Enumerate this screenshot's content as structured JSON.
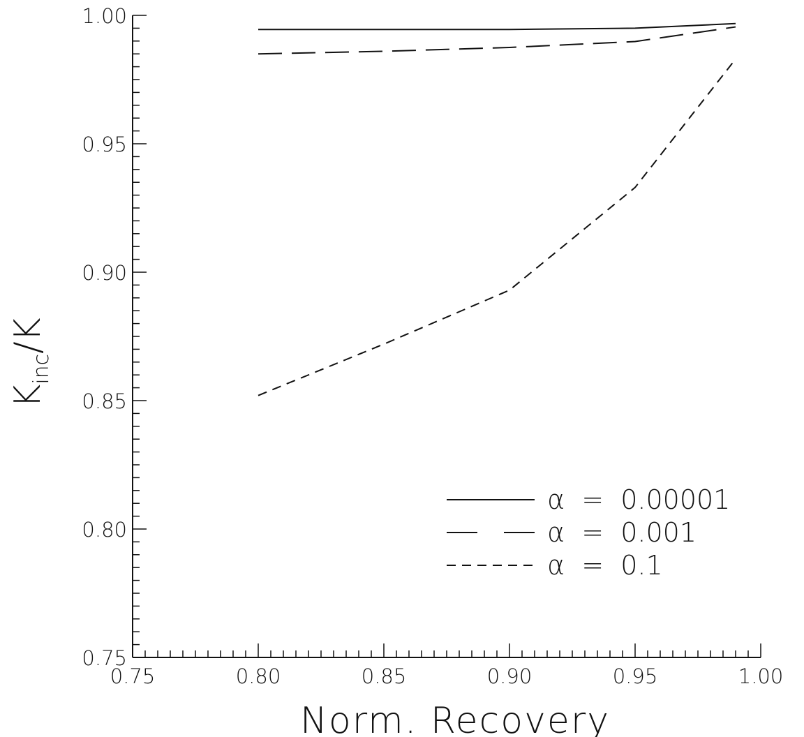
{
  "chart_data": {
    "type": "line",
    "title": "",
    "xlabel": "Norm.  Recovery",
    "ylabel": {
      "main": "K",
      "sub": "inc",
      "suffix": "/K"
    },
    "xlim": [
      0.75,
      1.0
    ],
    "ylim": [
      0.75,
      1.0
    ],
    "x_ticks": [
      "0.75",
      "0.80",
      "0.85",
      "0.90",
      "0.95",
      "1.00"
    ],
    "y_ticks": [
      "0.75",
      "0.80",
      "0.85",
      "0.90",
      "0.95",
      "1.00"
    ],
    "grid": false,
    "legend_position": "lower-right",
    "series": [
      {
        "name": "α  =  0.00001",
        "dash": "solid",
        "color": "#111111",
        "x": [
          0.8,
          0.85,
          0.9,
          0.95,
          0.99
        ],
        "y": [
          0.9945,
          0.9945,
          0.9945,
          0.995,
          0.9968
        ]
      },
      {
        "name": "α  =  0.001",
        "dash": "long-dash",
        "color": "#111111",
        "x": [
          0.8,
          0.85,
          0.9,
          0.95,
          0.99
        ],
        "y": [
          0.985,
          0.986,
          0.9875,
          0.9898,
          0.9955
        ]
      },
      {
        "name": "α  =  0.1",
        "dash": "short-dash",
        "color": "#111111",
        "x": [
          0.8,
          0.85,
          0.9,
          0.95,
          0.99
        ],
        "y": [
          0.852,
          0.872,
          0.893,
          0.933,
          0.983
        ]
      }
    ]
  }
}
